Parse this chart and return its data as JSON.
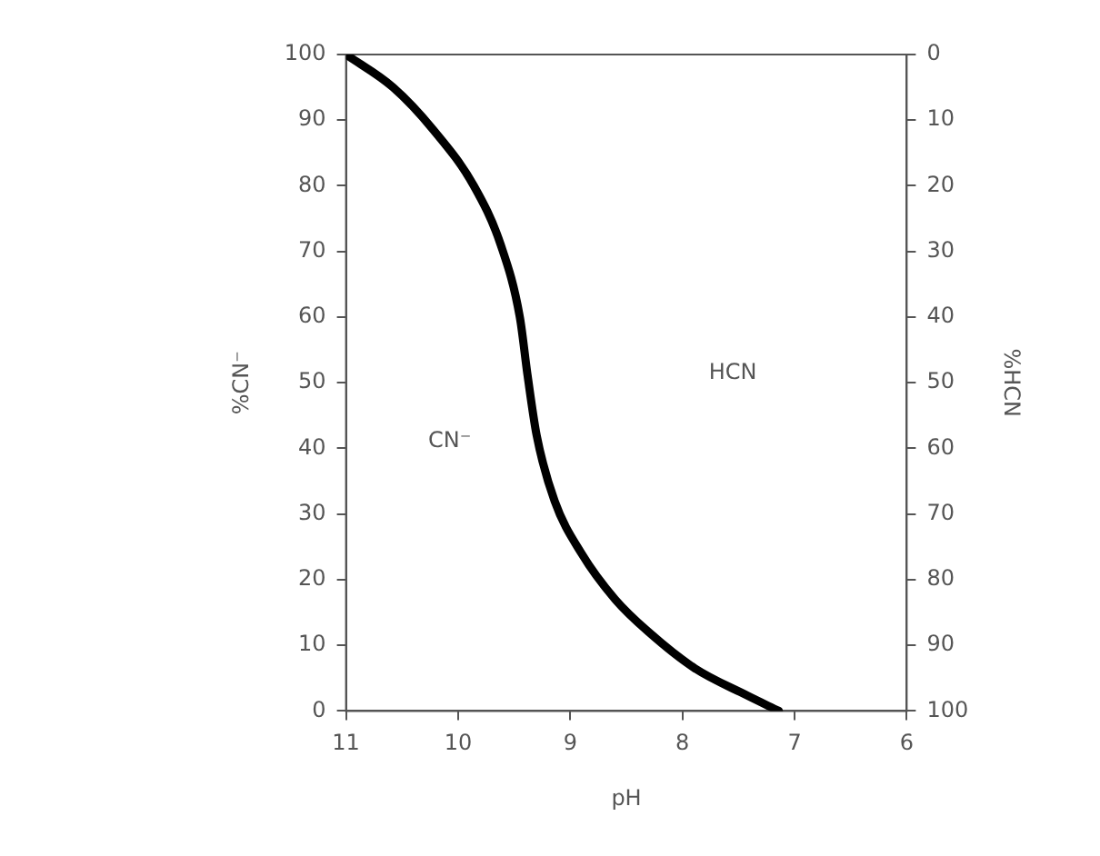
{
  "chart_data": {
    "type": "line",
    "xlabel": "pH",
    "ylabel": "%CN⁻",
    "y2label": "%HCN",
    "x": [
      11,
      10.58,
      10.22,
      9.86,
      9.62,
      9.45,
      9.38,
      9.3,
      9.14,
      8.9,
      8.6,
      8.3,
      7.89,
      7.44,
      7.14
    ],
    "series": [
      {
        "color": "#000000",
        "values": [
          100,
          95,
          88.5,
          80,
          71,
          60,
          51,
          42,
          32,
          24,
          17,
          12,
          6.5,
          2.5,
          0
        ]
      }
    ],
    "xlim": [
      11,
      6
    ],
    "xticks": [
      11,
      10,
      9,
      8,
      7,
      6
    ],
    "ylim": [
      0,
      100
    ],
    "yticks": [
      0,
      10,
      20,
      30,
      40,
      50,
      60,
      70,
      80,
      90,
      100
    ],
    "y2lim": [
      100,
      0
    ],
    "y2ticks": [
      0,
      10,
      20,
      30,
      40,
      50,
      60,
      70,
      80,
      90,
      100
    ],
    "annotations": [
      "CN⁻",
      "HCN"
    ],
    "grid": false,
    "legend": false,
    "marker": "none",
    "line_style": "solid"
  }
}
